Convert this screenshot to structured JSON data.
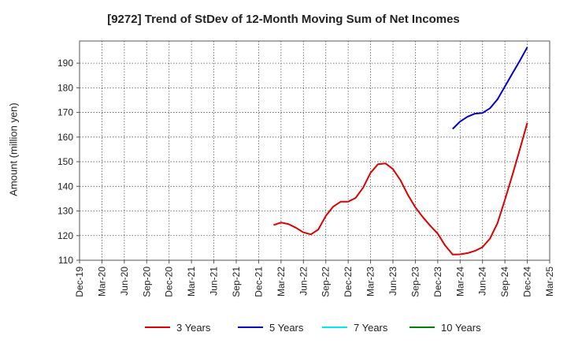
{
  "chart_data": {
    "type": "line",
    "title": "[9272]  Trend of StDev of 12-Month Moving Sum of Net Incomes",
    "ylabel": "Amount (million yen)",
    "xlabel": "",
    "x_ticks": [
      "Dec-19",
      "Mar-20",
      "Jun-20",
      "Sep-20",
      "Dec-20",
      "Mar-21",
      "Jun-21",
      "Sep-21",
      "Dec-21",
      "Mar-22",
      "Jun-22",
      "Sep-22",
      "Dec-22",
      "Mar-23",
      "Jun-23",
      "Sep-23",
      "Dec-23",
      "Mar-24",
      "Jun-24",
      "Sep-24",
      "Dec-24",
      "Mar-25"
    ],
    "y_ticks": [
      110,
      120,
      130,
      140,
      150,
      160,
      170,
      180,
      190
    ],
    "ylim": [
      110,
      199
    ],
    "grid": true,
    "legend_position": "bottom",
    "series": [
      {
        "name": "3 Years",
        "color": "#dd0000",
        "points": [
          [
            "Feb-22",
            124.3
          ],
          [
            "Mar-22",
            125.3
          ],
          [
            "Apr-22",
            124.7
          ],
          [
            "May-22",
            123.2
          ],
          [
            "Jun-22",
            121.3
          ],
          [
            "Jul-22",
            120.5
          ],
          [
            "Aug-22",
            122.5
          ],
          [
            "Sep-22",
            128.0
          ],
          [
            "Oct-22",
            131.8
          ],
          [
            "Nov-22",
            133.8
          ],
          [
            "Dec-22",
            133.8
          ],
          [
            "Jan-23",
            135.3
          ],
          [
            "Feb-23",
            139.5
          ],
          [
            "Mar-23",
            145.5
          ],
          [
            "Apr-23",
            149.0
          ],
          [
            "May-23",
            149.3
          ],
          [
            "Jun-23",
            147.0
          ],
          [
            "Jul-23",
            142.5
          ],
          [
            "Aug-23",
            136.5
          ],
          [
            "Sep-23",
            131.5
          ],
          [
            "Oct-23",
            127.5
          ],
          [
            "Nov-23",
            124.0
          ],
          [
            "Dec-23",
            120.8
          ],
          [
            "Jan-24",
            116.0
          ],
          [
            "Feb-24",
            112.3
          ],
          [
            "Mar-24",
            112.4
          ],
          [
            "Apr-24",
            112.9
          ],
          [
            "May-24",
            113.8
          ],
          [
            "Jun-24",
            115.3
          ],
          [
            "Jul-24",
            118.8
          ],
          [
            "Aug-24",
            125.0
          ],
          [
            "Sep-24",
            134.5
          ],
          [
            "Oct-24",
            144.5
          ],
          [
            "Nov-24",
            155.0
          ],
          [
            "Dec-24",
            165.8
          ]
        ]
      },
      {
        "name": "5 Years",
        "color": "#0000cc",
        "points": [
          [
            "Feb-24",
            163.3
          ],
          [
            "Mar-24",
            166.3
          ],
          [
            "Apr-24",
            168.3
          ],
          [
            "May-24",
            169.5
          ],
          [
            "Jun-24",
            169.8
          ],
          [
            "Jul-24",
            171.7
          ],
          [
            "Aug-24",
            175.3
          ],
          [
            "Sep-24",
            180.5
          ],
          [
            "Oct-24",
            185.8
          ],
          [
            "Nov-24",
            191.0
          ],
          [
            "Dec-24",
            196.5
          ]
        ]
      },
      {
        "name": "7 Years",
        "color": "#00e5ee",
        "points": []
      },
      {
        "name": "10 Years",
        "color": "#008000",
        "points": []
      }
    ]
  }
}
